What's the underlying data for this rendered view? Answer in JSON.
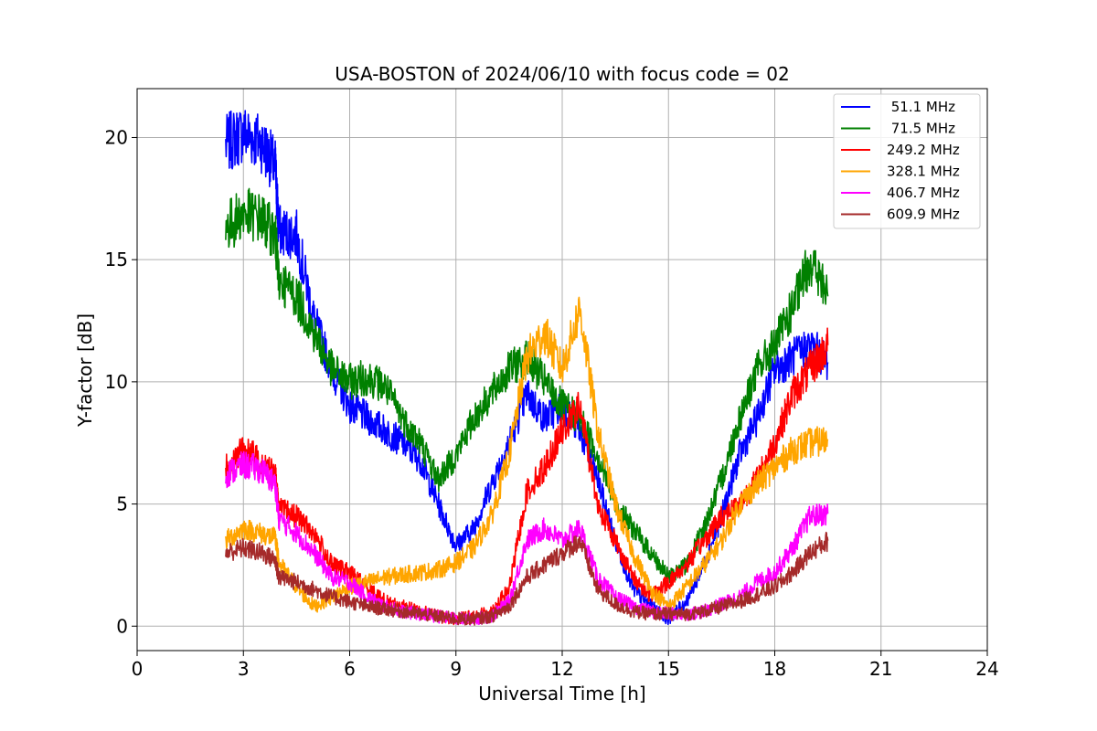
{
  "chart_data": {
    "type": "line",
    "title": "USA-BOSTON of 2024/06/10 with focus code = 02",
    "xlabel": "Universal Time [h]",
    "ylabel": "Y-factor [dB]",
    "xlim": [
      0,
      24
    ],
    "ylim": [
      -1,
      22
    ],
    "xticks": [
      0,
      3,
      6,
      9,
      12,
      15,
      18,
      21,
      24
    ],
    "yticks": [
      0,
      5,
      10,
      15,
      20
    ],
    "grid": true,
    "legend_position": "top-right",
    "series": [
      {
        "name": " 51.1 MHz",
        "color": "#0000ff",
        "x": [
          2.5,
          3.0,
          3.5,
          3.9,
          4.0,
          4.5,
          5.0,
          5.5,
          6.0,
          6.5,
          7.0,
          7.5,
          8.0,
          8.5,
          9.0,
          9.5,
          10.0,
          10.5,
          11.0,
          11.5,
          12.0,
          12.5,
          13.0,
          13.5,
          14.0,
          14.5,
          15.0,
          15.5,
          16.0,
          16.5,
          17.0,
          17.5,
          18.0,
          18.5,
          19.0,
          19.5
        ],
        "y": [
          19.7,
          20.2,
          19.8,
          18.8,
          16.2,
          16.0,
          12.5,
          10.5,
          9.0,
          8.5,
          8.0,
          7.5,
          6.8,
          5.0,
          3.3,
          4.0,
          5.8,
          7.5,
          9.5,
          8.5,
          9.0,
          8.0,
          6.0,
          3.5,
          1.5,
          0.8,
          0.3,
          1.0,
          2.5,
          4.5,
          7.0,
          8.5,
          10.5,
          11.0,
          11.5,
          10.8
        ]
      },
      {
        "name": " 71.5 MHz",
        "color": "#008000",
        "x": [
          2.5,
          3.0,
          3.5,
          3.9,
          4.0,
          4.5,
          5.0,
          5.5,
          6.0,
          6.5,
          7.0,
          7.5,
          8.0,
          8.5,
          9.0,
          9.5,
          10.0,
          10.5,
          11.0,
          11.5,
          12.0,
          12.5,
          13.0,
          13.5,
          14.0,
          14.5,
          15.0,
          15.5,
          16.0,
          16.5,
          17.0,
          17.5,
          18.0,
          18.5,
          19.0,
          19.5
        ],
        "y": [
          16.3,
          16.9,
          16.7,
          16.0,
          14.2,
          13.5,
          12.0,
          10.5,
          10.0,
          10.2,
          9.8,
          8.5,
          7.5,
          6.0,
          7.0,
          8.5,
          9.5,
          10.5,
          11.0,
          10.0,
          9.0,
          8.5,
          7.0,
          5.0,
          4.0,
          3.0,
          2.0,
          2.5,
          4.0,
          6.0,
          8.5,
          10.5,
          11.5,
          13.0,
          15.0,
          13.5
        ]
      },
      {
        "name": "249.2 MHz",
        "color": "#ff0000",
        "x": [
          2.5,
          3.0,
          3.5,
          3.9,
          4.0,
          4.5,
          5.0,
          5.5,
          6.0,
          6.5,
          7.0,
          7.5,
          8.0,
          8.5,
          9.0,
          9.5,
          10.0,
          10.5,
          11.0,
          11.5,
          12.0,
          12.5,
          13.0,
          13.5,
          14.0,
          14.5,
          15.0,
          15.5,
          16.0,
          16.5,
          17.0,
          17.5,
          18.0,
          18.5,
          19.0,
          19.5
        ],
        "y": [
          6.5,
          7.2,
          6.8,
          6.2,
          4.8,
          4.5,
          3.8,
          2.5,
          2.2,
          1.6,
          1.0,
          0.8,
          0.6,
          0.4,
          0.3,
          0.4,
          0.6,
          1.5,
          5.5,
          6.5,
          8.0,
          9.0,
          5.0,
          3.5,
          2.0,
          1.2,
          1.8,
          2.5,
          3.5,
          4.5,
          5.0,
          6.0,
          7.5,
          9.5,
          10.5,
          11.5
        ]
      },
      {
        "name": "328.1 MHz",
        "color": "#ffa500",
        "x": [
          2.5,
          3.0,
          3.5,
          3.9,
          4.0,
          4.5,
          5.0,
          5.5,
          6.0,
          6.5,
          7.0,
          7.5,
          8.0,
          8.5,
          9.0,
          9.5,
          10.0,
          10.5,
          11.0,
          11.5,
          12.0,
          12.5,
          13.0,
          13.5,
          14.0,
          14.5,
          15.0,
          15.5,
          16.0,
          16.5,
          17.0,
          17.5,
          18.0,
          18.5,
          19.0,
          19.5
        ],
        "y": [
          3.5,
          4.0,
          3.8,
          3.6,
          2.6,
          1.6,
          0.8,
          1.2,
          1.6,
          1.8,
          2.0,
          2.1,
          2.2,
          2.3,
          2.6,
          3.2,
          4.5,
          7.0,
          11.0,
          12.0,
          10.5,
          13.0,
          8.0,
          5.0,
          3.0,
          1.5,
          0.8,
          1.6,
          2.5,
          3.5,
          5.0,
          5.8,
          6.5,
          7.2,
          7.5,
          7.6
        ]
      },
      {
        "name": "406.7 MHz",
        "color": "#ff00ff",
        "x": [
          2.5,
          3.0,
          3.5,
          3.9,
          4.0,
          4.5,
          5.0,
          5.5,
          6.0,
          6.5,
          7.0,
          7.5,
          8.0,
          8.5,
          9.0,
          9.5,
          10.0,
          10.5,
          11.0,
          11.5,
          12.0,
          12.5,
          13.0,
          13.5,
          14.0,
          14.5,
          15.0,
          15.5,
          16.0,
          16.5,
          17.0,
          17.5,
          18.0,
          18.5,
          19.0,
          19.5
        ],
        "y": [
          6.2,
          6.6,
          6.4,
          5.8,
          4.4,
          3.8,
          3.0,
          2.0,
          1.8,
          1.2,
          0.8,
          0.6,
          0.5,
          0.4,
          0.3,
          0.3,
          0.4,
          1.0,
          3.5,
          4.0,
          3.5,
          4.0,
          2.0,
          1.2,
          0.8,
          0.6,
          0.5,
          0.5,
          0.6,
          0.9,
          1.2,
          1.8,
          2.2,
          3.2,
          4.5,
          4.6
        ]
      },
      {
        "name": "609.9 MHz",
        "color": "#a52a2a",
        "x": [
          2.5,
          3.0,
          3.5,
          3.9,
          4.0,
          4.5,
          5.0,
          5.5,
          6.0,
          6.5,
          7.0,
          7.5,
          8.0,
          8.5,
          9.0,
          9.5,
          10.0,
          10.5,
          11.0,
          11.5,
          12.0,
          12.5,
          13.0,
          13.5,
          14.0,
          14.5,
          15.0,
          15.5,
          16.0,
          16.5,
          17.0,
          17.5,
          18.0,
          18.5,
          19.0,
          19.5
        ],
        "y": [
          3.0,
          3.2,
          3.0,
          2.7,
          2.0,
          1.8,
          1.5,
          1.2,
          1.0,
          0.8,
          0.7,
          0.6,
          0.5,
          0.4,
          0.3,
          0.3,
          0.4,
          0.8,
          2.0,
          2.5,
          3.0,
          3.5,
          1.5,
          0.9,
          0.6,
          0.5,
          0.5,
          0.5,
          0.6,
          0.8,
          1.0,
          1.3,
          1.6,
          2.2,
          3.0,
          3.5
        ]
      }
    ]
  }
}
